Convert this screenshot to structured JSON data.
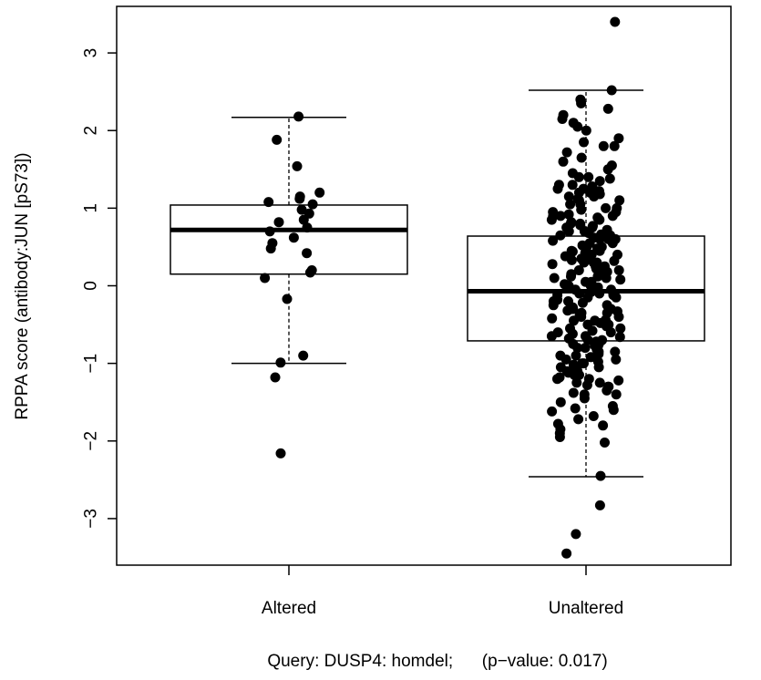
{
  "chart_data": {
    "type": "boxplot",
    "ylabel": "RPPA score (antibody:JUN [pS73])",
    "xlabel": "Query: DUSP4: homdel;      (p−value: 0.017)",
    "ylim": [
      -3.6,
      3.6
    ],
    "yticks": [
      -3,
      -2,
      -1,
      0,
      1,
      2,
      3
    ],
    "ytick_labels": [
      "−3",
      "−2",
      "−1",
      "0",
      "1",
      "2",
      "3"
    ],
    "categories": [
      "Altered",
      "Unaltered"
    ],
    "boxes": [
      {
        "name": "Altered",
        "whisker_low": -1.0,
        "q1": 0.15,
        "median": 0.72,
        "q3": 1.04,
        "whisker_high": 2.17
      },
      {
        "name": "Unaltered",
        "whisker_low": -2.46,
        "q1": -0.71,
        "median": -0.07,
        "q3": 0.64,
        "whisker_high": 2.52
      }
    ],
    "points": [
      {
        "name": "Altered",
        "values": [
          2.18,
          1.88,
          1.54,
          1.2,
          1.15,
          1.12,
          1.08,
          1.05,
          0.98,
          0.93,
          0.85,
          0.82,
          0.75,
          0.7,
          0.62,
          0.55,
          0.48,
          0.42,
          0.2,
          0.17,
          0.1,
          -0.17,
          -0.9,
          -0.99,
          -1.18,
          -2.16
        ]
      },
      {
        "name": "Unaltered",
        "values": [
          3.4,
          2.52,
          2.4,
          2.35,
          2.28,
          2.2,
          2.15,
          2.1,
          2.05,
          2.0,
          1.9,
          1.85,
          1.8,
          1.72,
          1.65,
          1.55,
          1.5,
          1.45,
          1.4,
          1.38,
          1.35,
          1.3,
          1.28,
          1.25,
          1.22,
          1.2,
          1.18,
          1.15,
          1.12,
          1.1,
          1.05,
          1.0,
          0.98,
          0.95,
          0.92,
          0.9,
          0.88,
          0.85,
          0.82,
          0.8,
          0.78,
          0.75,
          0.72,
          0.7,
          0.68,
          0.65,
          0.62,
          0.6,
          0.58,
          0.55,
          0.52,
          0.5,
          0.48,
          0.45,
          0.42,
          0.4,
          0.38,
          0.35,
          0.32,
          0.3,
          0.28,
          0.25,
          0.22,
          0.2,
          0.18,
          0.15,
          0.12,
          0.1,
          0.08,
          0.05,
          0.02,
          0.0,
          -0.02,
          -0.05,
          -0.08,
          -0.1,
          -0.12,
          -0.15,
          -0.18,
          -0.2,
          -0.22,
          -0.25,
          -0.28,
          -0.3,
          -0.32,
          -0.35,
          -0.38,
          -0.4,
          -0.42,
          -0.45,
          -0.48,
          -0.5,
          -0.52,
          -0.55,
          -0.58,
          -0.6,
          -0.62,
          -0.65,
          -0.68,
          -0.7,
          -0.72,
          -0.75,
          -0.78,
          -0.8,
          -0.82,
          -0.85,
          -0.88,
          -0.9,
          -0.92,
          -0.95,
          -0.98,
          -1.0,
          -1.02,
          -1.05,
          -1.08,
          -1.1,
          -1.12,
          -1.15,
          -1.18,
          -1.2,
          -1.22,
          -1.25,
          -1.28,
          -1.3,
          -1.35,
          -1.38,
          -1.4,
          -1.45,
          -1.5,
          -1.55,
          -1.58,
          -1.62,
          -1.68,
          -1.72,
          -1.78,
          -1.85,
          -1.9,
          -1.95,
          -2.02,
          -2.45,
          -2.83,
          -3.2,
          -3.45,
          0.3,
          0.6,
          -0.3,
          -0.6,
          0.9,
          -0.9,
          1.1,
          -1.1,
          0.0,
          0.4,
          -0.4,
          0.7,
          -0.7,
          1.3,
          -1.3,
          0.15,
          -0.15,
          0.5,
          -0.5,
          0.85,
          -0.85,
          1.05,
          -1.05,
          0.25,
          -0.25,
          0.65,
          -0.65,
          1.25,
          -1.25,
          0.45,
          -0.45,
          0.05,
          -0.05,
          0.35,
          -0.35,
          0.75,
          -0.75,
          0.95,
          -0.95,
          1.15,
          -1.15,
          0.55,
          -0.55,
          0.1,
          -0.1,
          1.4,
          -1.4,
          0.2,
          -0.2,
          0.8,
          -0.8,
          1.6,
          -1.6,
          0.33,
          -0.33,
          0.66,
          -0.66,
          1.0,
          -1.0,
          0.12,
          -0.12,
          0.44,
          -0.44,
          0.77,
          -0.77,
          1.2,
          -1.2,
          1.8,
          -1.8,
          0.9,
          0.3,
          -0.3,
          0.6
        ]
      }
    ],
    "grid": false,
    "legend": "none"
  }
}
